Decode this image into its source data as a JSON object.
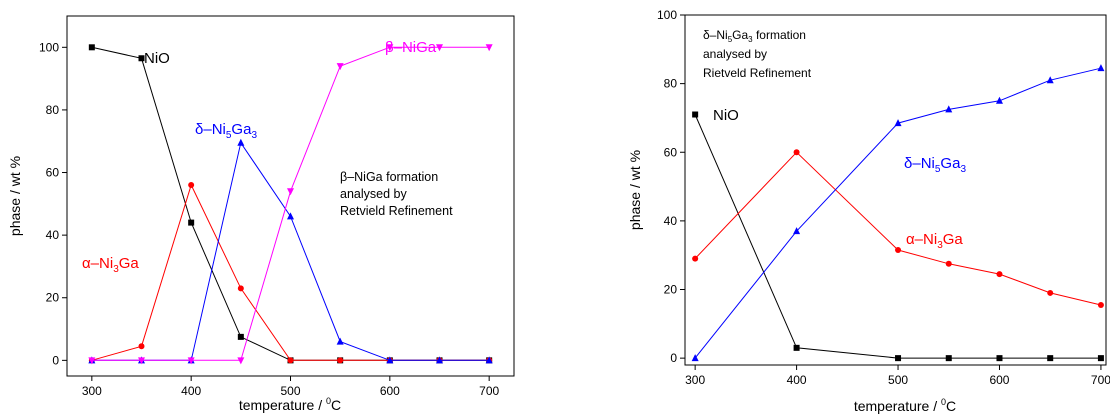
{
  "chart_data": [
    {
      "type": "line",
      "xlabel": "temperature / ⁰C",
      "ylabel": "phase / wt %",
      "xlim": [
        275,
        725
      ],
      "ylim": [
        -5,
        110
      ],
      "xticks": [
        300,
        400,
        500,
        600,
        700
      ],
      "yticks": [
        0,
        20,
        40,
        60,
        80,
        100
      ],
      "grid": false,
      "annotation": [
        "β–NiGa formation",
        "analysed by",
        "Retvield Refinement"
      ],
      "series": [
        {
          "name": "NiO",
          "color": "#000000",
          "marker": "square",
          "x": [
            300,
            350,
            400,
            450,
            500,
            550,
            600,
            650,
            700
          ],
          "y": [
            100,
            96.5,
            44,
            7.5,
            0,
            0,
            0,
            0,
            0
          ]
        },
        {
          "name": "α–Ni3Ga",
          "color": "#ff0000",
          "marker": "circle",
          "x": [
            300,
            350,
            400,
            450,
            500,
            550,
            600,
            650,
            700
          ],
          "y": [
            0,
            4.5,
            56,
            23,
            0,
            0,
            0,
            0,
            0
          ]
        },
        {
          "name": "δ–Ni5Ga3",
          "color": "#0000ff",
          "marker": "triangle-up",
          "x": [
            300,
            350,
            400,
            450,
            500,
            550,
            600,
            650,
            700
          ],
          "y": [
            0,
            0,
            0,
            69.5,
            46,
            6,
            0,
            0,
            0
          ]
        },
        {
          "name": "β–NiGa",
          "color": "#ff00ff",
          "marker": "triangle-down",
          "x": [
            300,
            350,
            400,
            450,
            500,
            550,
            600,
            650,
            700
          ],
          "y": [
            0,
            0,
            0,
            0,
            54,
            94,
            100,
            100,
            100
          ]
        }
      ]
    },
    {
      "type": "line",
      "xlabel": "temperature / ⁰C",
      "ylabel": "phase / wt %",
      "xlim": [
        290,
        705
      ],
      "ylim": [
        -2,
        100
      ],
      "xticks": [
        300,
        400,
        500,
        600,
        700
      ],
      "yticks": [
        0,
        20,
        40,
        60,
        80,
        100
      ],
      "grid": false,
      "annotation": [
        "δ–Ni5Ga3 formation",
        "analysed by",
        "Rietveld Refinement"
      ],
      "series": [
        {
          "name": "NiO",
          "color": "#000000",
          "marker": "square",
          "x": [
            300,
            400,
            500,
            550,
            600,
            650,
            700
          ],
          "y": [
            71,
            3,
            0,
            0,
            0,
            0,
            0
          ]
        },
        {
          "name": "α–Ni3Ga",
          "color": "#ff0000",
          "marker": "circle",
          "x": [
            300,
            400,
            500,
            550,
            600,
            650,
            700
          ],
          "y": [
            29,
            60,
            31.5,
            27.5,
            24.5,
            19,
            15.5
          ]
        },
        {
          "name": "δ–Ni5Ga3",
          "color": "#0000ff",
          "marker": "triangle-up",
          "x": [
            300,
            400,
            500,
            550,
            600,
            650,
            700
          ],
          "y": [
            0,
            37,
            68.5,
            72.5,
            75,
            81,
            84.5
          ]
        }
      ]
    }
  ]
}
